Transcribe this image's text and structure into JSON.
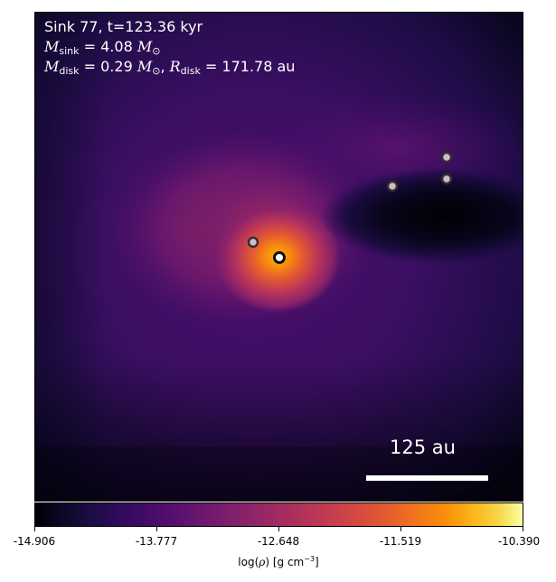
{
  "info": {
    "line1": "Sink 77, t=123.36 kyr",
    "sink_mass_label": "sink",
    "sink_mass_value": "= 4.08",
    "disk_mass_label": "disk",
    "disk_mass_value": "= 0.29",
    "disk_radius_label": "disk",
    "disk_radius_value": "= 171.78 au",
    "mass_symbol": "M",
    "radius_symbol": "R",
    "solar_symbol": "⊙"
  },
  "scale_bar": {
    "label": "125 au"
  },
  "colorbar": {
    "ticks": [
      "-14.906",
      "-13.777",
      "-12.648",
      "-11.519",
      "-10.390"
    ],
    "label_prefix": "log(",
    "label_rho": "ρ",
    "label_suffix": ") [g cm",
    "label_exp": "−3",
    "label_end": "]",
    "colormap": "inferno"
  },
  "markers": {
    "central_sink_color": "#ffffff",
    "other_sink_color": "#c8c0c8"
  }
}
